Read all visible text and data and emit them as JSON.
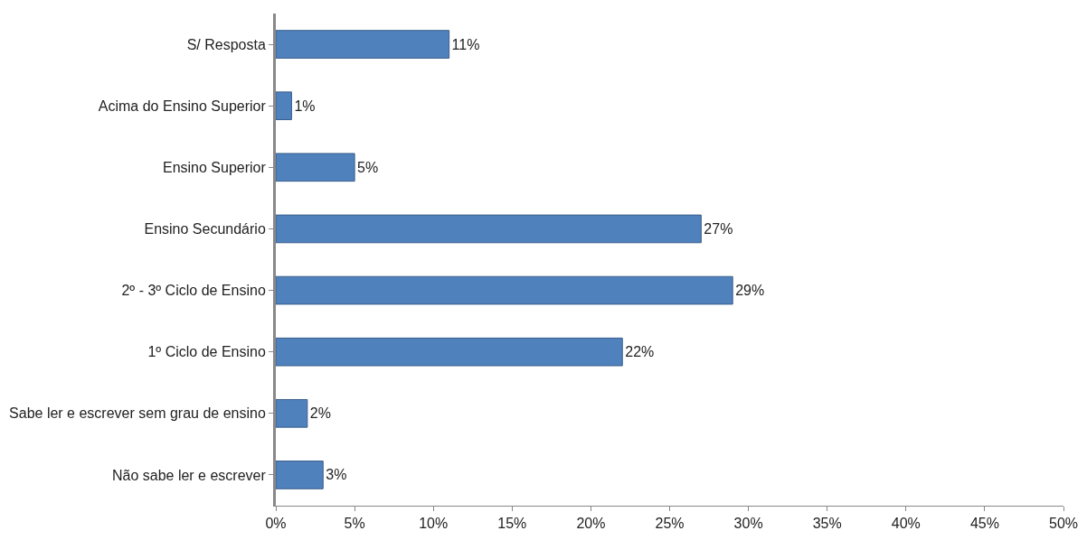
{
  "chart_data": {
    "type": "bar",
    "orientation": "horizontal",
    "categories": [
      "S/ Resposta",
      "Acima do Ensino Superior",
      "Ensino Superior",
      "Ensino Secundário",
      "2º - 3º Ciclo de Ensino",
      "1º Ciclo de Ensino",
      "Sabe ler e escrever sem grau de ensino",
      "Não sabe ler e escrever"
    ],
    "values": [
      11,
      1,
      5,
      27,
      29,
      22,
      2,
      3
    ],
    "value_labels": [
      "11%",
      "1%",
      "5%",
      "27%",
      "29%",
      "22%",
      "2%",
      "3%"
    ],
    "color": "#4f81bd",
    "xlim": [
      0,
      50
    ],
    "xticks": [
      {
        "value": 0,
        "label": "0%"
      },
      {
        "value": 5,
        "label": "5%"
      },
      {
        "value": 10,
        "label": "10%"
      },
      {
        "value": 15,
        "label": "15%"
      },
      {
        "value": 20,
        "label": "20%"
      },
      {
        "value": 25,
        "label": "25%"
      },
      {
        "value": 30,
        "label": "30%"
      },
      {
        "value": 35,
        "label": "35%"
      },
      {
        "value": 40,
        "label": "40%"
      },
      {
        "value": 45,
        "label": "45%"
      },
      {
        "value": 50,
        "label": "50%"
      }
    ],
    "legend": false
  }
}
